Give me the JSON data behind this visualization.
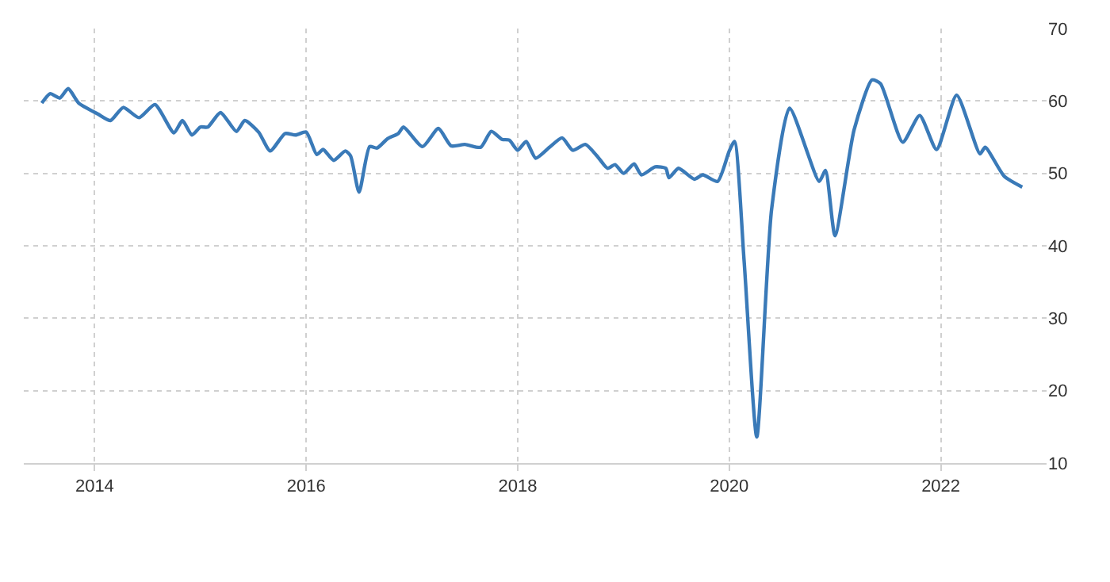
{
  "chart_data": {
    "type": "line",
    "x": [
      2013.5,
      2013.58,
      2013.67,
      2013.75,
      2013.85,
      2014.03,
      2014.15,
      2014.27,
      2014.42,
      2014.57,
      2014.75,
      2014.83,
      2014.92,
      2015.0,
      2015.07,
      2015.19,
      2015.34,
      2015.42,
      2015.55,
      2015.66,
      2015.8,
      2015.9,
      2016.0,
      2016.1,
      2016.16,
      2016.26,
      2016.37,
      2016.42,
      2016.5,
      2016.6,
      2016.67,
      2016.77,
      2016.87,
      2016.92,
      2017.1,
      2017.25,
      2017.37,
      2017.5,
      2017.65,
      2017.75,
      2017.85,
      2017.92,
      2018.0,
      2018.08,
      2018.17,
      2018.3,
      2018.42,
      2018.52,
      2018.64,
      2018.75,
      2018.85,
      2018.92,
      2019.0,
      2019.1,
      2019.17,
      2019.3,
      2019.4,
      2019.43,
      2019.52,
      2019.67,
      2019.75,
      2019.89,
      2020.0,
      2020.05,
      2020.14,
      2020.26,
      2020.4,
      2020.57,
      2020.85,
      2020.91,
      2021.0,
      2021.18,
      2021.35,
      2021.43,
      2021.64,
      2021.8,
      2021.96,
      2022.15,
      2022.37,
      2022.42,
      2022.6,
      2022.77
    ],
    "series": [
      {
        "color": "#3a7ab8",
        "values": [
          59.7,
          61.0,
          60.4,
          61.7,
          59.7,
          58.2,
          57.3,
          59.1,
          57.7,
          59.5,
          55.6,
          57.3,
          55.3,
          56.4,
          56.4,
          58.4,
          55.8,
          57.3,
          55.7,
          53.1,
          55.5,
          55.3,
          55.7,
          52.6,
          53.3,
          51.8,
          53.1,
          52.4,
          47.4,
          53.7,
          53.5,
          54.8,
          55.5,
          56.4,
          53.7,
          56.2,
          53.8,
          54.0,
          53.6,
          55.8,
          54.7,
          54.6,
          53.2,
          54.4,
          52.1,
          53.6,
          54.9,
          53.2,
          54.0,
          52.4,
          50.7,
          51.2,
          50.0,
          51.3,
          49.8,
          50.9,
          50.7,
          49.4,
          50.7,
          49.2,
          49.8,
          48.9,
          53.1,
          54.4,
          38.0,
          13.6,
          45.0,
          59.0,
          48.9,
          50.4,
          41.4,
          56.0,
          62.9,
          62.4,
          54.3,
          58.0,
          53.3,
          60.8,
          52.7,
          53.6,
          49.6,
          48.1
        ]
      }
    ],
    "xlim": [
      2013.33,
      2023.0
    ],
    "xticks": [
      2014,
      2016,
      2018,
      2020,
      2022
    ],
    "ylim": [
      10,
      70
    ],
    "yticks": [
      10,
      20,
      30,
      40,
      50,
      60,
      70
    ],
    "grid": true,
    "legend": false,
    "marker": "none",
    "line_style": "solid"
  }
}
